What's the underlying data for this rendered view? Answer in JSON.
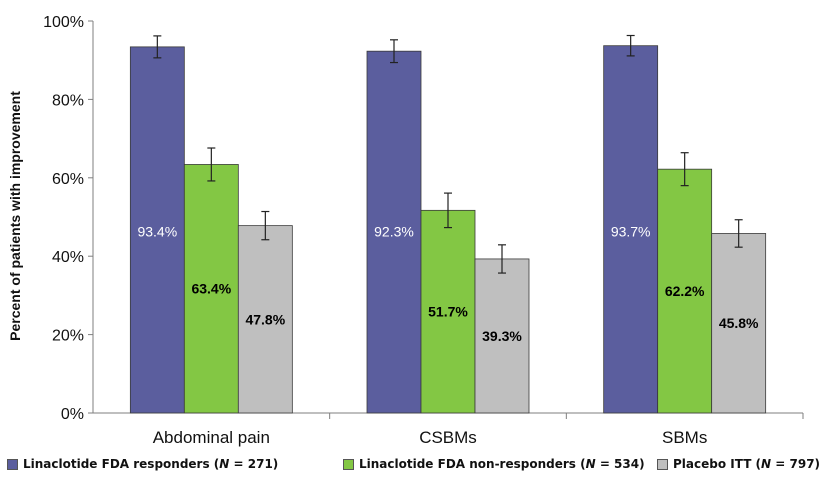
{
  "chart_data": {
    "type": "bar",
    "ylabel": "Percent of patients with improvement",
    "ylim": [
      0,
      100
    ],
    "yticks": [
      "0%",
      "20%",
      "40%",
      "60%",
      "80%",
      "100%"
    ],
    "ytick_values": [
      0,
      20,
      40,
      60,
      80,
      100
    ],
    "categories": [
      "Abdominal pain",
      "CSBMs",
      "SBMs"
    ],
    "grid": false,
    "legend_position": "bottom",
    "series": [
      {
        "name": "Linaclotide FDA responders (N = 271)",
        "name_parts": [
          "Linaclotide FDA responders (",
          "N",
          " = 271)"
        ],
        "color": "#5b5e9e",
        "label_color": "#ffffff",
        "values": [
          93.4,
          92.3,
          93.7
        ],
        "errors": [
          2.8,
          2.9,
          2.6
        ],
        "labels": [
          "93.4%",
          "92.3%",
          "93.7%"
        ]
      },
      {
        "name": "Linaclotide FDA non-responders (N = 534)",
        "name_parts": [
          "Linaclotide FDA non-responders (",
          "N",
          " = 534)"
        ],
        "color": "#83c744",
        "label_color": "#000000",
        "values": [
          63.4,
          51.7,
          62.2
        ],
        "errors": [
          4.2,
          4.4,
          4.2
        ],
        "labels": [
          "63.4%",
          "51.7%",
          "62.2%"
        ]
      },
      {
        "name": "Placebo ITT (N = 797)",
        "name_parts": [
          "Placebo ITT (",
          "N",
          " = 797)"
        ],
        "color": "#bfbfbf",
        "label_color": "#000000",
        "values": [
          47.8,
          39.3,
          45.8
        ],
        "errors": [
          3.6,
          3.6,
          3.5
        ],
        "labels": [
          "47.8%",
          "39.3%",
          "45.8%"
        ]
      }
    ]
  }
}
